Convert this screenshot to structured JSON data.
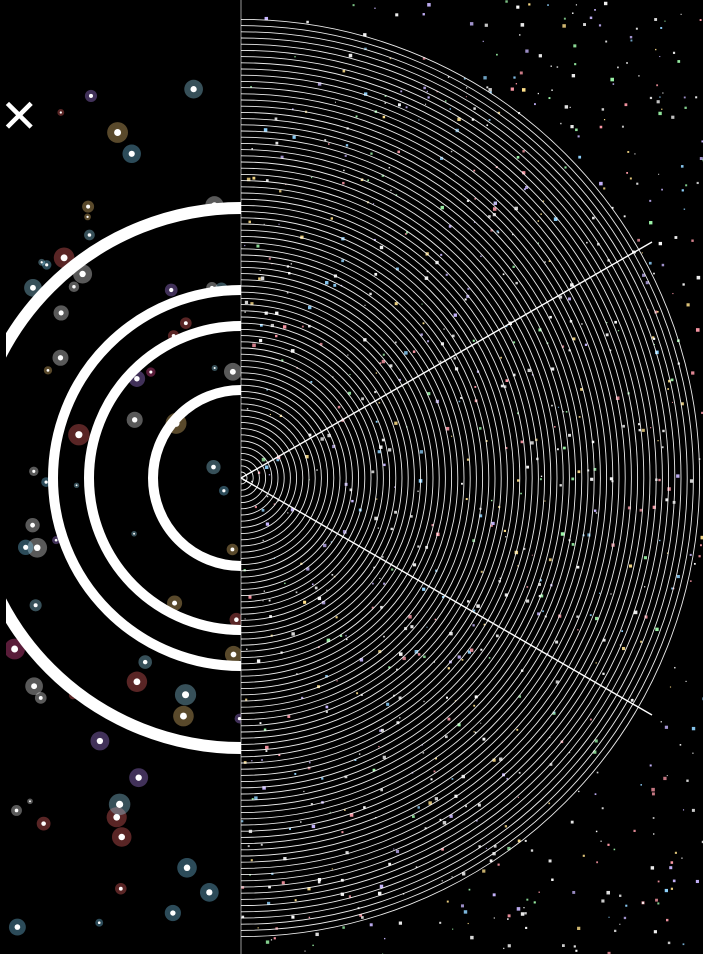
{
  "close_button": {
    "label": "✕",
    "icon": "close-icon"
  },
  "left_panel": {
    "background": "#000000",
    "ring_color": "#ffffff",
    "ring_count": 5
  },
  "right_panel": {
    "background": "#000000",
    "line_color": "#ffffff",
    "radial_line_count": 2,
    "concentric_arc_style": "dense"
  }
}
